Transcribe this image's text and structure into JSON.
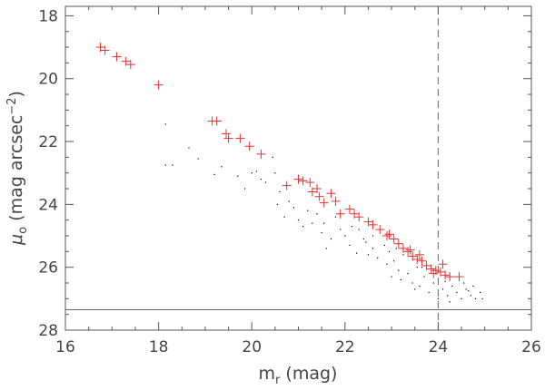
{
  "chart_data": {
    "type": "scatter",
    "title": "",
    "xlabel": {
      "main": "m",
      "sub": "r",
      "tail": " (mag)"
    },
    "ylabel": {
      "pre": "(mag arcsec",
      "sup": "−2",
      "post": ")",
      "symbol": "μ",
      "sub": "o"
    },
    "xlim": [
      16,
      26
    ],
    "ylim": [
      28,
      17.7
    ],
    "y_inverted": true,
    "xticks": [
      16,
      18,
      20,
      22,
      24,
      26
    ],
    "yticks": [
      18,
      20,
      22,
      24,
      26,
      28
    ],
    "grid": false,
    "reference_lines": [
      {
        "orientation": "vertical",
        "value": 24.0,
        "style": "dashed"
      },
      {
        "orientation": "horizontal",
        "value": 27.35,
        "style": "solid"
      }
    ],
    "series": [
      {
        "marker": "plus",
        "color": "#e83030",
        "points": [
          [
            16.75,
            19.0
          ],
          [
            16.85,
            19.1
          ],
          [
            17.1,
            19.3
          ],
          [
            17.3,
            19.45
          ],
          [
            17.4,
            19.55
          ],
          [
            18.0,
            20.2
          ],
          [
            19.15,
            21.35
          ],
          [
            19.25,
            21.35
          ],
          [
            19.45,
            21.75
          ],
          [
            19.5,
            21.9
          ],
          [
            19.75,
            21.9
          ],
          [
            19.95,
            22.15
          ],
          [
            20.2,
            22.4
          ],
          [
            20.75,
            23.4
          ],
          [
            21.0,
            23.2
          ],
          [
            21.1,
            23.25
          ],
          [
            21.25,
            23.3
          ],
          [
            21.3,
            23.6
          ],
          [
            21.4,
            23.5
          ],
          [
            21.45,
            23.75
          ],
          [
            21.55,
            23.95
          ],
          [
            21.7,
            23.65
          ],
          [
            21.8,
            23.9
          ],
          [
            21.9,
            24.3
          ],
          [
            22.1,
            24.15
          ],
          [
            22.2,
            24.3
          ],
          [
            22.3,
            24.4
          ],
          [
            22.5,
            24.55
          ],
          [
            22.6,
            24.65
          ],
          [
            22.75,
            24.8
          ],
          [
            22.9,
            25.0
          ],
          [
            23.05,
            25.1
          ],
          [
            23.15,
            25.25
          ],
          [
            23.25,
            25.4
          ],
          [
            23.35,
            25.5
          ],
          [
            23.45,
            25.65
          ],
          [
            23.55,
            25.75
          ],
          [
            23.65,
            25.8
          ],
          [
            23.75,
            25.95
          ],
          [
            23.85,
            26.05
          ],
          [
            23.95,
            26.1
          ],
          [
            24.05,
            26.15
          ],
          [
            24.15,
            26.25
          ],
          [
            24.25,
            26.3
          ],
          [
            24.45,
            26.3
          ],
          [
            23.6,
            25.6
          ],
          [
            23.9,
            26.2
          ],
          [
            24.1,
            25.9
          ],
          [
            22.95,
            24.95
          ],
          [
            23.4,
            25.45
          ]
        ]
      },
      {
        "marker": "dot",
        "color": "#000000",
        "points": [
          [
            18.15,
            21.45
          ],
          [
            18.15,
            22.75
          ],
          [
            18.3,
            22.75
          ],
          [
            18.85,
            22.55
          ],
          [
            18.65,
            22.2
          ],
          [
            19.2,
            23.05
          ],
          [
            19.35,
            22.8
          ],
          [
            19.7,
            23.1
          ],
          [
            20.0,
            23.0
          ],
          [
            20.1,
            22.95
          ],
          [
            20.2,
            23.2
          ],
          [
            20.45,
            22.5
          ],
          [
            20.5,
            23.0
          ],
          [
            20.8,
            23.9
          ],
          [
            20.7,
            24.4
          ],
          [
            20.55,
            24.0
          ],
          [
            21.0,
            24.5
          ],
          [
            21.2,
            24.2
          ],
          [
            21.3,
            24.6
          ],
          [
            21.5,
            24.9
          ],
          [
            21.6,
            25.4
          ],
          [
            21.8,
            24.4
          ],
          [
            21.9,
            24.8
          ],
          [
            22.0,
            25.0
          ],
          [
            22.1,
            25.3
          ],
          [
            22.3,
            24.8
          ],
          [
            22.4,
            25.1
          ],
          [
            22.5,
            25.6
          ],
          [
            22.6,
            25.0
          ],
          [
            22.7,
            25.7
          ],
          [
            22.85,
            25.3
          ],
          [
            22.95,
            25.5
          ],
          [
            23.05,
            25.8
          ],
          [
            23.15,
            26.1
          ],
          [
            23.25,
            25.6
          ],
          [
            23.35,
            26.2
          ],
          [
            23.45,
            26.5
          ],
          [
            23.55,
            26.0
          ],
          [
            23.6,
            26.6
          ],
          [
            23.7,
            26.3
          ],
          [
            23.8,
            26.8
          ],
          [
            23.9,
            26.5
          ],
          [
            24.0,
            27.0
          ],
          [
            24.1,
            26.7
          ],
          [
            24.2,
            26.9
          ],
          [
            24.3,
            26.6
          ],
          [
            24.4,
            26.8
          ],
          [
            24.5,
            27.0
          ],
          [
            24.6,
            26.7
          ],
          [
            24.7,
            26.9
          ],
          [
            24.8,
            27.0
          ],
          [
            24.9,
            26.8
          ],
          [
            23.2,
            26.4
          ],
          [
            22.9,
            25.9
          ],
          [
            22.6,
            25.4
          ],
          [
            21.7,
            25.1
          ],
          [
            22.25,
            25.55
          ],
          [
            23.0,
            26.3
          ],
          [
            23.5,
            26.7
          ],
          [
            24.25,
            27.1
          ],
          [
            24.55,
            26.5
          ],
          [
            24.75,
            26.6
          ],
          [
            24.95,
            27.0
          ],
          [
            20.9,
            24.1
          ],
          [
            21.1,
            24.7
          ],
          [
            21.4,
            24.3
          ],
          [
            21.55,
            24.6
          ],
          [
            22.15,
            24.7
          ],
          [
            22.45,
            25.2
          ],
          [
            23.1,
            25.4
          ],
          [
            23.65,
            26.0
          ],
          [
            24.15,
            26.45
          ],
          [
            24.65,
            26.75
          ],
          [
            20.3,
            23.3
          ],
          [
            20.6,
            23.6
          ],
          [
            19.85,
            23.5
          ]
        ]
      }
    ]
  }
}
